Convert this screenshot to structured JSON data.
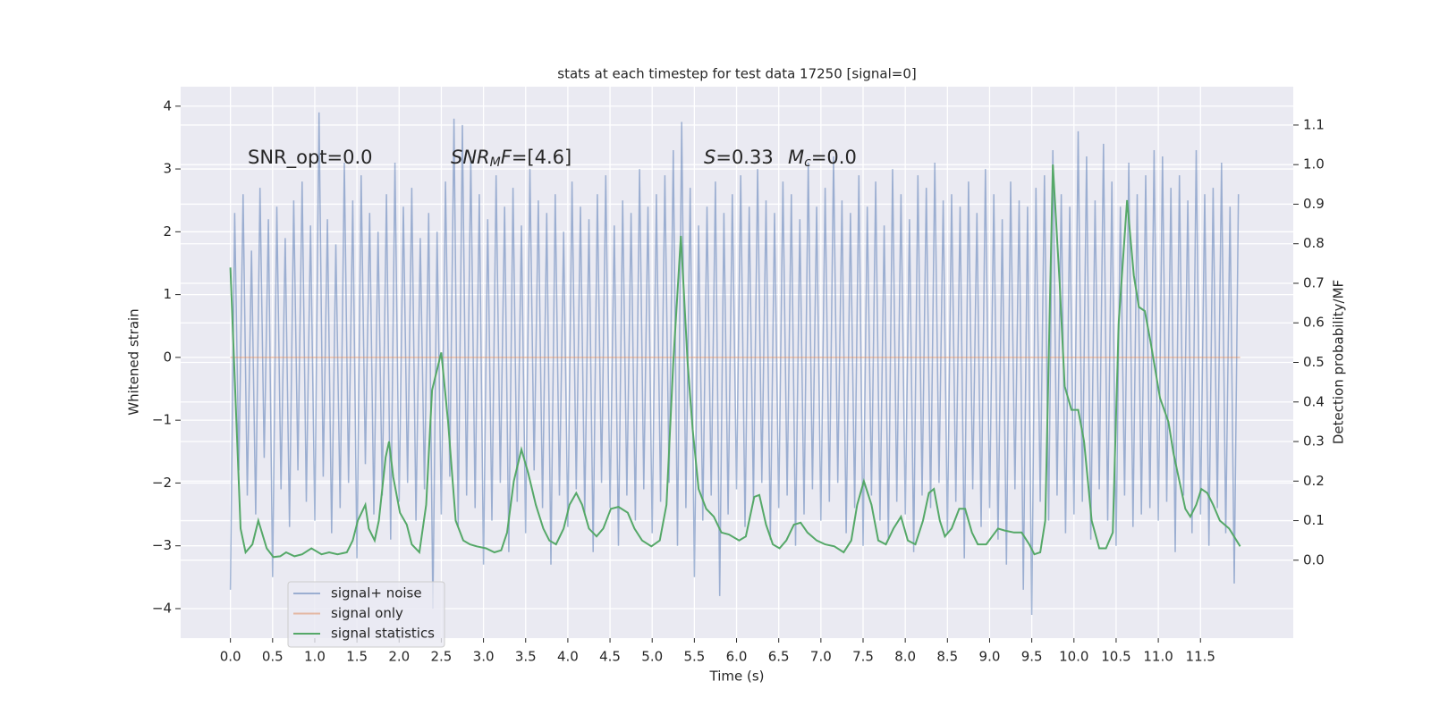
{
  "chart_data": {
    "type": "line",
    "title": "stats at each timestep for test data 17250 [signal=0]",
    "xlabel": "Time (s)",
    "ylabel": "Whitened strain",
    "y2label": "Detection probability/MF",
    "xlim": [
      -0.59,
      12.6
    ],
    "ylim": [
      -4.47,
      4.31
    ],
    "y2lim": [
      -0.197,
      1.197
    ],
    "grid": true,
    "xticks": [
      {
        "value": 0,
        "label": "0.0"
      },
      {
        "value": 0.5,
        "label": "0.5"
      },
      {
        "value": 1,
        "label": "1.0"
      },
      {
        "value": 1.5,
        "label": "1.5"
      },
      {
        "value": 2,
        "label": "2.0"
      },
      {
        "value": 2.5,
        "label": "2.5"
      },
      {
        "value": 3,
        "label": "3.0"
      },
      {
        "value": 3.5,
        "label": "3.5"
      },
      {
        "value": 4,
        "label": "4.0"
      },
      {
        "value": 4.5,
        "label": "4.5"
      },
      {
        "value": 5,
        "label": "5.0"
      },
      {
        "value": 5.5,
        "label": "5.5"
      },
      {
        "value": 6,
        "label": "6.0"
      },
      {
        "value": 6.5,
        "label": "6.5"
      },
      {
        "value": 7,
        "label": "7.0"
      },
      {
        "value": 7.5,
        "label": "7.5"
      },
      {
        "value": 8,
        "label": "8.0"
      },
      {
        "value": 8.5,
        "label": "8.5"
      },
      {
        "value": 9,
        "label": "9.0"
      },
      {
        "value": 9.5,
        "label": "9.5"
      },
      {
        "value": 10,
        "label": "10.0"
      },
      {
        "value": 10.5,
        "label": "10.5"
      },
      {
        "value": 11,
        "label": "11.0"
      },
      {
        "value": 11.5,
        "label": "11.5"
      }
    ],
    "yticks": [
      {
        "value": -4,
        "label": "−4"
      },
      {
        "value": -3,
        "label": "−3"
      },
      {
        "value": -2,
        "label": "−2"
      },
      {
        "value": -1,
        "label": "−1"
      },
      0,
      1,
      2,
      3,
      4
    ],
    "y2ticks": [
      {
        "value": 0,
        "label": "0.0"
      },
      0.1,
      0.2,
      0.3,
      0.4,
      0.5,
      0.6,
      0.7,
      0.8,
      0.9,
      {
        "value": 1,
        "label": "1.0"
      },
      1.1
    ],
    "annotations": [
      {
        "parts": [
          {
            "text": "SNR_opt=0.0"
          }
        ]
      },
      {
        "parts": [
          {
            "text": "SNR",
            "italic": true
          },
          {
            "text": "M",
            "italic": true,
            "sub": true
          },
          {
            "text": "F",
            "italic": true
          },
          {
            "text": "=[4.6]"
          }
        ]
      },
      {
        "parts": [
          {
            "text": "S",
            "italic": true
          },
          {
            "text": "=0.33"
          }
        ]
      },
      {
        "parts": [
          {
            "text": "M",
            "italic": true
          },
          {
            "text": "c",
            "italic": true,
            "sub": true
          },
          {
            "text": "=0.0"
          }
        ]
      }
    ],
    "series": [
      {
        "name": "signal+ noise",
        "color": "#4c72b0",
        "opacity": 0.5,
        "x": [
          0,
          0.05,
          0.1,
          0.15,
          0.2,
          0.25,
          0.3,
          0.35,
          0.4,
          0.45,
          0.5,
          0.55,
          0.6,
          0.65,
          0.7,
          0.75,
          0.8,
          0.85,
          0.9,
          0.95,
          1,
          1.05,
          1.1,
          1.15,
          1.2,
          1.25,
          1.3,
          1.35,
          1.4,
          1.45,
          1.5,
          1.55,
          1.6,
          1.65,
          1.7,
          1.75,
          1.8,
          1.85,
          1.9,
          1.95,
          2,
          2.05,
          2.1,
          2.15,
          2.2,
          2.25,
          2.3,
          2.35,
          2.4,
          2.45,
          2.5,
          2.55,
          2.6,
          2.65,
          2.7,
          2.75,
          2.8,
          2.85,
          2.9,
          2.95,
          3,
          3.05,
          3.1,
          3.15,
          3.2,
          3.25,
          3.3,
          3.35,
          3.4,
          3.45,
          3.5,
          3.55,
          3.6,
          3.65,
          3.7,
          3.75,
          3.8,
          3.85,
          3.9,
          3.95,
          4,
          4.05,
          4.1,
          4.15,
          4.2,
          4.25,
          4.3,
          4.35,
          4.4,
          4.45,
          4.5,
          4.55,
          4.6,
          4.65,
          4.7,
          4.75,
          4.8,
          4.85,
          4.9,
          4.95,
          5,
          5.05,
          5.1,
          5.15,
          5.2,
          5.25,
          5.3,
          5.35,
          5.4,
          5.45,
          5.5,
          5.55,
          5.6,
          5.65,
          5.7,
          5.75,
          5.8,
          5.85,
          5.9,
          5.95,
          6,
          6.05,
          6.1,
          6.15,
          6.2,
          6.25,
          6.3,
          6.35,
          6.4,
          6.45,
          6.5,
          6.55,
          6.6,
          6.65,
          6.7,
          6.75,
          6.8,
          6.85,
          6.9,
          6.95,
          7,
          7.05,
          7.1,
          7.15,
          7.2,
          7.25,
          7.3,
          7.35,
          7.4,
          7.45,
          7.5,
          7.55,
          7.6,
          7.65,
          7.7,
          7.75,
          7.8,
          7.85,
          7.9,
          7.95,
          8,
          8.05,
          8.1,
          8.15,
          8.2,
          8.25,
          8.3,
          8.35,
          8.4,
          8.45,
          8.5,
          8.55,
          8.6,
          8.65,
          8.7,
          8.75,
          8.8,
          8.85,
          8.9,
          8.95,
          9,
          9.05,
          9.1,
          9.15,
          9.2,
          9.25,
          9.3,
          9.35,
          9.4,
          9.45,
          9.5,
          9.55,
          9.6,
          9.65,
          9.7,
          9.75,
          9.8,
          9.85,
          9.9,
          9.95,
          10,
          10.05,
          10.1,
          10.15,
          10.2,
          10.25,
          10.3,
          10.35,
          10.4,
          10.45,
          10.5,
          10.55,
          10.6,
          10.65,
          10.7,
          10.75,
          10.8,
          10.85,
          10.9,
          10.95,
          11,
          11.05,
          11.1,
          11.15,
          11.2,
          11.25,
          11.3,
          11.35,
          11.4,
          11.45,
          11.5,
          11.55,
          11.6,
          11.65,
          11.7,
          11.75,
          11.8,
          11.85,
          11.9,
          11.95
        ],
        "values": [
          -3.7,
          2.3,
          -1.8,
          2.6,
          -2.2,
          1.7,
          -2.5,
          2.7,
          -1.6,
          2.2,
          -3.5,
          2.4,
          -2.1,
          1.9,
          -2.7,
          2.5,
          -1.8,
          2.8,
          -2.3,
          2.1,
          -2.6,
          3.9,
          -1.9,
          2.2,
          -2.8,
          1.8,
          -2.4,
          3.1,
          -2.0,
          2.5,
          -3.2,
          2.9,
          -1.7,
          2.3,
          -2.5,
          2.0,
          -2.2,
          2.6,
          -2.9,
          3.1,
          -2.3,
          2.4,
          -2.0,
          2.7,
          -2.6,
          1.9,
          -2.1,
          2.3,
          -4.0,
          2.0,
          -2.5,
          2.8,
          -1.9,
          3.8,
          -2.7,
          3.7,
          -2.2,
          3.2,
          -2.4,
          2.6,
          -3.3,
          2.2,
          -2.6,
          2.9,
          -2.0,
          2.4,
          -3.1,
          2.7,
          -2.3,
          2.1,
          -2.8,
          3.0,
          -1.8,
          2.5,
          -2.4,
          2.3,
          -3.3,
          2.6,
          -2.2,
          2.0,
          -2.7,
          2.8,
          -2.1,
          2.4,
          -2.5,
          2.2,
          -3.1,
          2.6,
          -2.0,
          2.9,
          -2.4,
          2.1,
          -3.0,
          2.5,
          -2.2,
          2.3,
          -2.6,
          3.0,
          -2.1,
          2.4,
          -2.8,
          2.6,
          -2.3,
          2.9,
          -2.0,
          3.3,
          -3.0,
          3.75,
          -2.4,
          2.7,
          -3.5,
          2.1,
          -2.6,
          2.4,
          -2.2,
          2.8,
          -3.8,
          2.3,
          -2.5,
          2.6,
          -2.1,
          2.9,
          -2.7,
          2.4,
          -2.3,
          3.0,
          -2.0,
          2.5,
          -2.9,
          2.3,
          -2.4,
          2.8,
          -2.2,
          2.6,
          -3.0,
          2.2,
          -2.5,
          3.1,
          -2.1,
          2.4,
          -2.6,
          2.7,
          -2.3,
          3.2,
          -2.0,
          2.5,
          -2.8,
          2.3,
          -2.4,
          2.9,
          -3.0,
          2.4,
          -2.2,
          2.8,
          -2.6,
          2.1,
          -2.9,
          3.0,
          -2.3,
          2.6,
          -2.5,
          2.2,
          -3.1,
          2.9,
          -2.2,
          2.7,
          -2.4,
          3.1,
          -2.0,
          2.5,
          -2.8,
          2.6,
          -2.3,
          2.4,
          -3.2,
          2.8,
          -2.1,
          2.3,
          -2.7,
          3.0,
          -2.4,
          2.6,
          -2.9,
          2.2,
          -3.3,
          2.8,
          -2.1,
          2.5,
          -3.7,
          2.4,
          -4.1,
          2.7,
          -2.3,
          2.9,
          -2.6,
          3.3,
          -2.2,
          2.6,
          -2.8,
          2.4,
          -2.5,
          3.6,
          -2.3,
          3.2,
          -2.9,
          2.5,
          -2.1,
          3.4,
          -2.6,
          2.8,
          -3.0,
          2.4,
          -2.2,
          3.1,
          -2.7,
          2.6,
          -2.5,
          2.9,
          -2.4,
          3.3,
          -2.6,
          3.2,
          -2.3,
          2.7,
          -3.1,
          2.9,
          -2.2,
          2.5,
          -2.8,
          3.3,
          -2.5,
          2.6,
          -3.0,
          2.7,
          -2.4,
          3.1,
          -2.8,
          2.4,
          -3.6,
          2.6
        ]
      },
      {
        "name": "signal only",
        "color": "#dd8452",
        "opacity": 0.5,
        "x": [
          0,
          11.97
        ],
        "values": [
          0,
          0
        ]
      },
      {
        "name": "signal statistics",
        "color": "#55a868",
        "opacity": 1,
        "axis": "y2",
        "x": [
          0,
          0.12,
          0.18,
          0.26,
          0.33,
          0.43,
          0.51,
          0.59,
          0.66,
          0.76,
          0.85,
          0.96,
          1.08,
          1.17,
          1.27,
          1.38,
          1.45,
          1.51,
          1.6,
          1.64,
          1.71,
          1.76,
          1.84,
          1.88,
          1.93,
          2.01,
          2.09,
          2.15,
          2.24,
          2.32,
          2.39,
          2.5,
          2.58,
          2.67,
          2.76,
          2.84,
          2.92,
          3.03,
          3.13,
          3.21,
          3.28,
          3.36,
          3.45,
          3.53,
          3.62,
          3.71,
          3.78,
          3.86,
          3.95,
          4.02,
          4.1,
          4.17,
          4.25,
          4.34,
          4.42,
          4.51,
          4.6,
          4.71,
          4.79,
          4.88,
          4.99,
          5.09,
          5.17,
          5.25,
          5.34,
          5.42,
          5.48,
          5.55,
          5.64,
          5.73,
          5.82,
          5.91,
          6.03,
          6.11,
          6.21,
          6.27,
          6.35,
          6.43,
          6.51,
          6.59,
          6.68,
          6.76,
          6.84,
          6.95,
          7.05,
          7.16,
          7.27,
          7.36,
          7.43,
          7.51,
          7.6,
          7.68,
          7.77,
          7.86,
          7.95,
          8.03,
          8.12,
          8.21,
          8.28,
          8.34,
          8.41,
          8.47,
          8.55,
          8.64,
          8.71,
          8.79,
          8.86,
          8.96,
          9.03,
          9.1,
          9.18,
          9.29,
          9.38,
          9.47,
          9.53,
          9.6,
          9.66,
          9.75,
          9.83,
          9.89,
          9.97,
          10.05,
          10.12,
          10.21,
          10.3,
          10.38,
          10.46,
          10.53,
          10.63,
          10.71,
          10.77,
          10.84,
          10.91,
          11.02,
          11.12,
          11.18,
          11.25,
          11.32,
          11.38,
          11.45,
          11.51,
          11.58,
          11.65,
          11.73,
          11.84,
          11.97
        ],
        "values": [
          0.74,
          0.08,
          0.02,
          0.04,
          0.1,
          0.03,
          0.008,
          0.01,
          0.02,
          0.01,
          0.015,
          0.03,
          0.015,
          0.02,
          0.015,
          0.02,
          0.05,
          0.1,
          0.14,
          0.08,
          0.05,
          0.1,
          0.26,
          0.3,
          0.21,
          0.12,
          0.09,
          0.04,
          0.02,
          0.14,
          0.43,
          0.525,
          0.35,
          0.1,
          0.05,
          0.04,
          0.035,
          0.03,
          0.02,
          0.025,
          0.07,
          0.2,
          0.28,
          0.22,
          0.14,
          0.08,
          0.05,
          0.04,
          0.08,
          0.14,
          0.17,
          0.14,
          0.08,
          0.06,
          0.08,
          0.13,
          0.135,
          0.12,
          0.08,
          0.05,
          0.035,
          0.05,
          0.14,
          0.5,
          0.82,
          0.5,
          0.33,
          0.18,
          0.13,
          0.11,
          0.07,
          0.065,
          0.05,
          0.06,
          0.16,
          0.165,
          0.09,
          0.04,
          0.03,
          0.05,
          0.09,
          0.095,
          0.07,
          0.05,
          0.04,
          0.035,
          0.02,
          0.05,
          0.14,
          0.2,
          0.14,
          0.05,
          0.04,
          0.08,
          0.11,
          0.05,
          0.04,
          0.1,
          0.17,
          0.18,
          0.1,
          0.06,
          0.08,
          0.13,
          0.13,
          0.07,
          0.04,
          0.04,
          0.06,
          0.08,
          0.075,
          0.07,
          0.07,
          0.04,
          0.015,
          0.02,
          0.1,
          1.0,
          0.7,
          0.44,
          0.38,
          0.38,
          0.3,
          0.1,
          0.03,
          0.03,
          0.07,
          0.6,
          0.91,
          0.72,
          0.64,
          0.63,
          0.55,
          0.41,
          0.35,
          0.27,
          0.2,
          0.13,
          0.11,
          0.14,
          0.18,
          0.17,
          0.14,
          0.1,
          0.08,
          0.035
        ]
      }
    ]
  }
}
